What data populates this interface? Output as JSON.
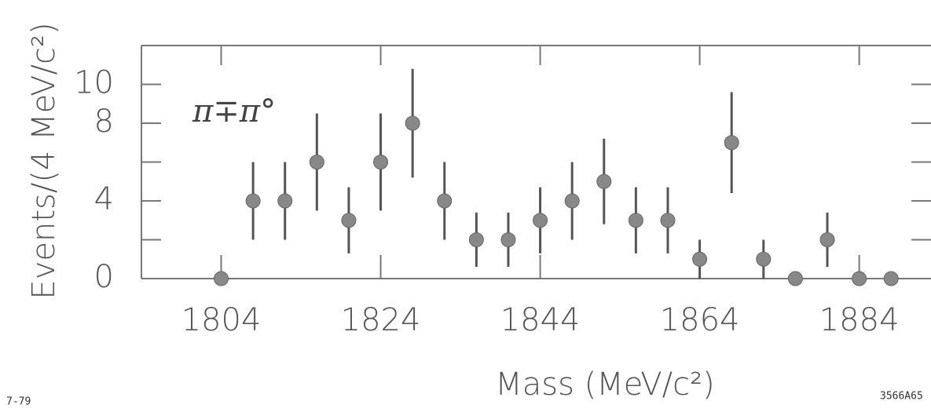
{
  "chart_data": {
    "type": "scatter",
    "y_label": "Events/(4 MeV/c²)",
    "x_label": "Mass    (MeV/c²)",
    "annotation": "π∓π°",
    "date_note": "7-79",
    "figure_id": "3566A65",
    "x": [
      1804,
      1808,
      1812,
      1816,
      1820,
      1824,
      1828,
      1832,
      1836,
      1840,
      1844,
      1848,
      1852,
      1856,
      1860,
      1864,
      1868,
      1872,
      1876,
      1880,
      1884,
      1888
    ],
    "values": [
      0,
      4,
      4,
      6,
      3,
      6,
      8,
      4,
      2,
      2,
      3,
      4,
      5,
      3,
      3,
      1,
      7,
      1,
      0,
      2,
      0,
      0
    ],
    "errors": [
      0,
      2,
      2,
      2.5,
      1.7,
      2.5,
      2.8,
      2,
      1.4,
      1.4,
      1.7,
      2,
      2.2,
      1.7,
      1.7,
      1,
      2.6,
      1,
      0,
      1.4,
      0,
      0
    ],
    "color": "#888888",
    "xlim": [
      1794,
      1893
    ],
    "ylim": [
      0,
      12
    ],
    "xticks": [
      1804,
      1824,
      1844,
      1864,
      1884
    ],
    "yticks": [
      0,
      4,
      8,
      10
    ],
    "yminorticks": [
      2,
      6
    ]
  }
}
